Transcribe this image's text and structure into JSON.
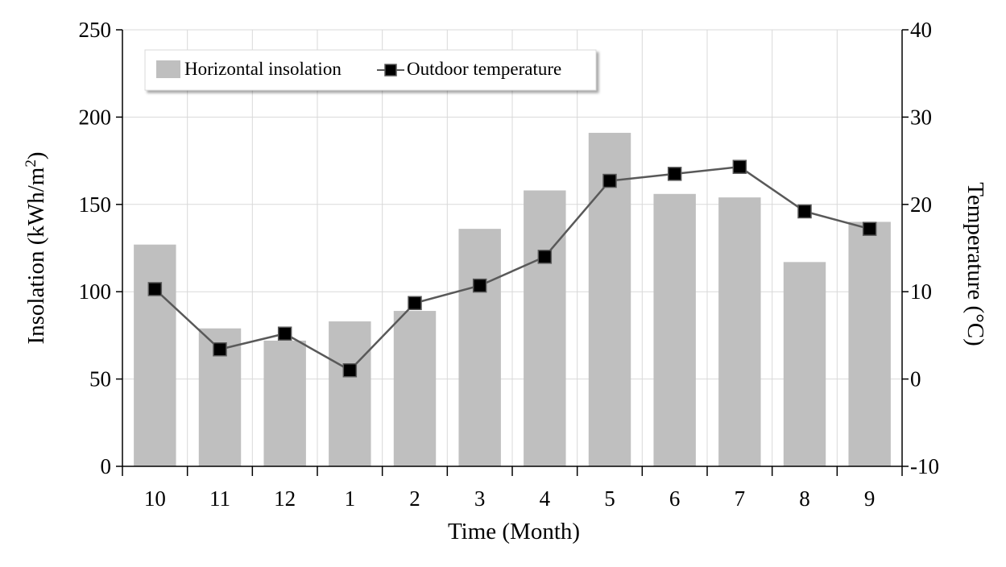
{
  "chart_data": {
    "type": "bar",
    "categories": [
      "10",
      "11",
      "12",
      "1",
      "2",
      "3",
      "4",
      "5",
      "6",
      "7",
      "8",
      "9"
    ],
    "series": [
      {
        "name": "Horizontal insolation",
        "type": "bar",
        "axis": "left",
        "color": "#bfbfbf",
        "values": [
          127,
          79,
          72,
          83,
          89,
          136,
          158,
          191,
          156,
          154,
          117,
          140
        ]
      },
      {
        "name": "Outdoor temperature",
        "type": "line",
        "axis": "right",
        "color": "#595959",
        "marker": "square",
        "marker_color": "#000000",
        "values": [
          10.3,
          3.4,
          5.2,
          1.0,
          8.7,
          10.7,
          14.0,
          22.7,
          23.5,
          24.3,
          19.2,
          17.2
        ]
      }
    ],
    "xlabel": "Time (Month)",
    "ylabel": "Insolation (kWh/m²)",
    "y2label": "Temperature (°C)",
    "ylim": [
      0,
      250
    ],
    "y2lim": [
      -10,
      40
    ],
    "yticks": [
      "0",
      "50",
      "100",
      "150",
      "200",
      "250"
    ],
    "y2ticks": [
      "-10",
      "0",
      "10",
      "20",
      "30",
      "40"
    ],
    "grid": true,
    "legend_position": "top-left"
  }
}
